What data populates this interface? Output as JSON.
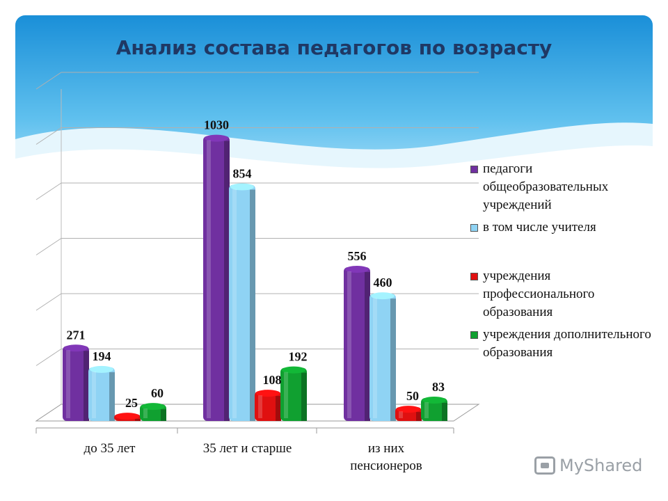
{
  "title": "Анализ состава педагогов по возрасту",
  "colors": {
    "purple": "#7030a0",
    "lightblue": "#8fd3f4",
    "red": "#e01010",
    "green": "#10a030"
  },
  "watermark": "MyShared",
  "chart_data": {
    "type": "bar",
    "title": "Анализ состава педагогов по возрасту",
    "categories": [
      "до 35 лет",
      "35 лет и старше",
      "из них пенсионеров"
    ],
    "series": [
      {
        "name": "педагоги общеобразовательных учреждений",
        "color": "#7030a0",
        "values": [
          271,
          1030,
          556
        ]
      },
      {
        "name": "в том числе учителя",
        "color": "#8fd3f4",
        "values": [
          194,
          854,
          460
        ]
      },
      {
        "name": "учреждения профессионального образования",
        "color": "#e01010",
        "values": [
          25,
          108,
          50
        ]
      },
      {
        "name": "учреждения дополнительного образования",
        "color": "#10a030",
        "values": [
          60,
          192,
          83
        ]
      }
    ],
    "ylim": [
      0,
      1200
    ],
    "grid": true,
    "legend": "right",
    "xlabel": "",
    "ylabel": ""
  }
}
